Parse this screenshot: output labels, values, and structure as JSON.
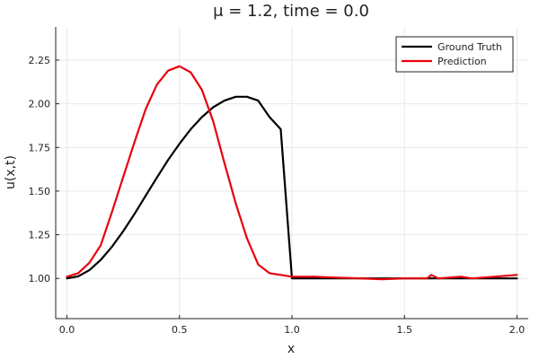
{
  "chart_data": {
    "type": "line",
    "title": "μ = 1.2, time = 0.0",
    "xlabel": "x",
    "ylabel": "u(x,t)",
    "xlim": [
      -0.05,
      2.05
    ],
    "ylim": [
      0.77,
      2.44
    ],
    "xticks": [
      0.0,
      0.5,
      1.0,
      1.5,
      2.0
    ],
    "xtick_labels": [
      "0.0",
      "0.5",
      "1.0",
      "1.5",
      "2.0"
    ],
    "yticks": [
      1.0,
      1.25,
      1.5,
      1.75,
      2.0,
      2.25
    ],
    "ytick_labels": [
      "1.00",
      "1.25",
      "1.50",
      "1.75",
      "2.00",
      "2.25"
    ],
    "grid": true,
    "legend_position": "top-right",
    "series": [
      {
        "name": "Ground Truth",
        "color": "#000000",
        "x": [
          0.0,
          0.05,
          0.1,
          0.15,
          0.2,
          0.25,
          0.3,
          0.35,
          0.4,
          0.45,
          0.5,
          0.55,
          0.6,
          0.65,
          0.7,
          0.75,
          0.8,
          0.85,
          0.9,
          0.95,
          1.0,
          1.1,
          1.2,
          1.3,
          1.4,
          1.5,
          1.6,
          1.7,
          1.8,
          1.9,
          2.0
        ],
        "y": [
          1.0,
          1.012,
          1.048,
          1.106,
          1.181,
          1.27,
          1.369,
          1.474,
          1.578,
          1.679,
          1.771,
          1.854,
          1.924,
          1.98,
          2.018,
          2.04,
          2.04,
          2.018,
          1.924,
          1.854,
          1.0,
          1.0,
          1.0,
          1.0,
          1.0,
          1.0,
          1.0,
          1.0,
          1.0,
          1.0,
          1.0
        ]
      },
      {
        "name": "Prediction",
        "color": "#e8000b",
        "x": [
          0.0,
          0.05,
          0.1,
          0.15,
          0.2,
          0.25,
          0.3,
          0.35,
          0.4,
          0.45,
          0.5,
          0.55,
          0.6,
          0.65,
          0.7,
          0.75,
          0.8,
          0.85,
          0.9,
          0.95,
          1.0,
          1.1,
          1.2,
          1.3,
          1.4,
          1.5,
          1.6,
          1.62,
          1.65,
          1.7,
          1.75,
          1.8,
          1.9,
          2.0
        ],
        "y": [
          1.01,
          1.03,
          1.09,
          1.19,
          1.38,
          1.58,
          1.78,
          1.97,
          2.11,
          2.19,
          2.215,
          2.18,
          2.08,
          1.9,
          1.66,
          1.43,
          1.23,
          1.08,
          1.03,
          1.02,
          1.01,
          1.01,
          1.005,
          1.0,
          0.995,
          1.0,
          1.0,
          1.02,
          1.0,
          1.005,
          1.01,
          1.0,
          1.01,
          1.02
        ]
      }
    ]
  }
}
